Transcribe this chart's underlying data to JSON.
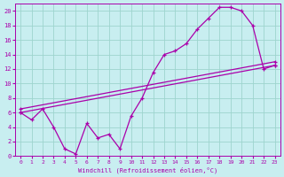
{
  "xlabel": "Windchill (Refroidissement éolien,°C)",
  "bg_color": "#c8eef0",
  "grid_color": "#9dd4ce",
  "line_color": "#aa00aa",
  "xlim": [
    -0.5,
    23.5
  ],
  "ylim": [
    0,
    21
  ],
  "xticks": [
    0,
    1,
    2,
    3,
    4,
    5,
    6,
    7,
    8,
    9,
    10,
    11,
    12,
    13,
    14,
    15,
    16,
    17,
    18,
    19,
    20,
    21,
    22,
    23
  ],
  "yticks": [
    0,
    2,
    4,
    6,
    8,
    10,
    12,
    14,
    16,
    18,
    20
  ],
  "series1_x": [
    0,
    1,
    2,
    3,
    4,
    5,
    6,
    7,
    8,
    9,
    10,
    11,
    12,
    13,
    14,
    15,
    16,
    17,
    18,
    19,
    20,
    21,
    22,
    23
  ],
  "series1_y": [
    6.0,
    5.0,
    6.5,
    4.0,
    1.0,
    0.3,
    4.5,
    2.5,
    3.0,
    1.0,
    5.5,
    8.0,
    11.5,
    14.0,
    14.5,
    15.5,
    17.5,
    19.0,
    20.5,
    20.5,
    20.0,
    18.0,
    12.0,
    12.5
  ],
  "series2_x": [
    0,
    23
  ],
  "series2_y": [
    6.0,
    12.5
  ],
  "series3_x": [
    0,
    23
  ],
  "series3_y": [
    6.5,
    13.0
  ]
}
